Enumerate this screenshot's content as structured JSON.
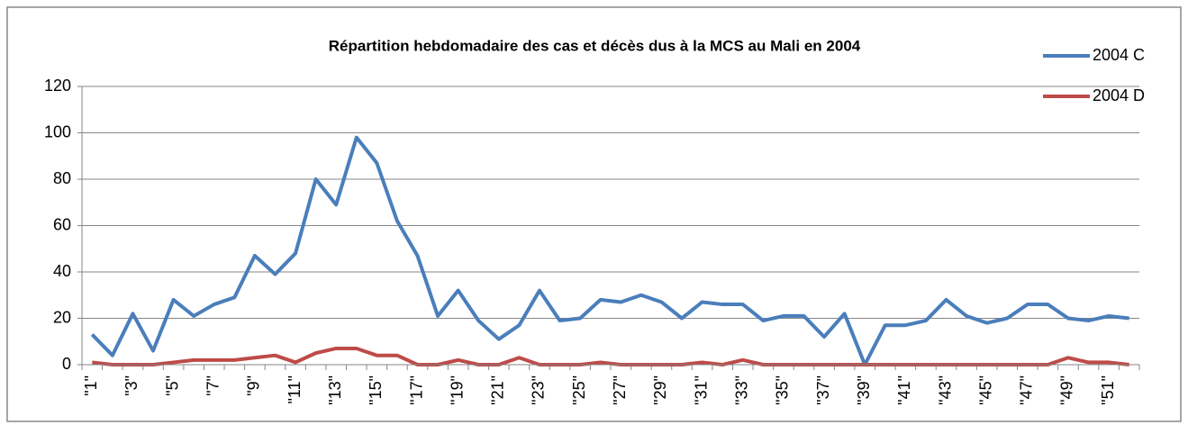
{
  "chart_data": {
    "type": "line",
    "title": "Répartition hebdomadaire des cas et décès dus à la MCS au Mali en 2004",
    "categories": [
      "\"1\"",
      null,
      "\"3\"",
      null,
      "\"5\"",
      null,
      "\"7\"",
      null,
      "\"9\"",
      null,
      "\"11\"",
      null,
      "\"13\"",
      null,
      "\"15\"",
      null,
      "\"17\"",
      null,
      "\"19\"",
      null,
      "\"21\"",
      null,
      "\"23\"",
      null,
      "\"25\"",
      null,
      "\"27\"",
      null,
      "\"29\"",
      null,
      "\"31\"",
      null,
      "\"33\"",
      null,
      "\"35\"",
      null,
      "\"37\"",
      null,
      "\"39\"",
      null,
      "\"41\"",
      null,
      "\"43\"",
      null,
      "\"45\"",
      null,
      "\"47\"",
      null,
      "\"49\"",
      null,
      "\"51\"",
      null
    ],
    "series": [
      {
        "name": "2004 C",
        "color": "#4a7ebb",
        "values": [
          13,
          4,
          22,
          6,
          28,
          21,
          26,
          29,
          47,
          39,
          48,
          80,
          69,
          98,
          87,
          62,
          47,
          21,
          32,
          19,
          11,
          17,
          32,
          19,
          20,
          28,
          27,
          30,
          27,
          20,
          27,
          26,
          26,
          19,
          21,
          21,
          12,
          22,
          0,
          17,
          17,
          19,
          28,
          21,
          18,
          20,
          26,
          26,
          20,
          19,
          21,
          20
        ]
      },
      {
        "name": "2004 D",
        "color": "#be4b48",
        "values": [
          1,
          0,
          0,
          0,
          1,
          2,
          2,
          2,
          3,
          4,
          1,
          5,
          7,
          7,
          4,
          4,
          0,
          0,
          2,
          0,
          0,
          3,
          0,
          0,
          0,
          1,
          0,
          0,
          0,
          0,
          1,
          0,
          2,
          0,
          0,
          0,
          0,
          0,
          0,
          0,
          0,
          0,
          0,
          0,
          0,
          0,
          0,
          0,
          3,
          1,
          1,
          0
        ]
      }
    ],
    "ylim": [
      0,
      120
    ],
    "yticks": [
      0,
      20,
      40,
      60,
      80,
      100,
      120
    ],
    "grid": true,
    "legend": "top-right"
  }
}
